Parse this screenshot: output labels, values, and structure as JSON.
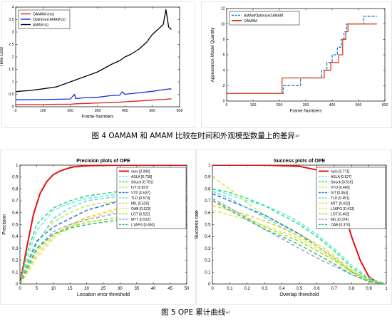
{
  "figures": {
    "fig4_caption": "图 4 OAMAM 和 AMAM 比较在时间和外观模型数量上的差异",
    "fig5_caption": "图 5 OPE 累计曲线",
    "caption_mark": "↵"
  },
  "chart_data": [
    {
      "type": "line",
      "title": "",
      "xlabel": "Frame Numbers",
      "ylabel": "Time Cost",
      "xlim": [
        0,
        600
      ],
      "ylim": [
        0,
        4
      ],
      "xticks": [
        0,
        100,
        200,
        300,
        400,
        500,
        600
      ],
      "yticks": [
        0,
        0.5,
        1,
        1.5,
        2,
        2.5,
        3,
        3.5,
        4
      ],
      "grid": false,
      "legend_position": "top-left",
      "series": [
        {
          "name": "OAMAM (ms)",
          "color": "#e02020",
          "x": [
            0,
            50,
            100,
            150,
            200,
            220,
            250,
            300,
            350,
            400,
            450,
            500,
            550,
            570
          ],
          "y": [
            0.08,
            0.09,
            0.09,
            0.1,
            0.1,
            0.12,
            0.13,
            0.15,
            0.17,
            0.2,
            0.23,
            0.27,
            0.3,
            0.32
          ]
        },
        {
          "name": "Optimized AMAM (s)",
          "color": "#1a2be0",
          "x": [
            0,
            100,
            200,
            215,
            220,
            230,
            250,
            300,
            350,
            380,
            390,
            400,
            450,
            500,
            550,
            570
          ],
          "y": [
            0.28,
            0.29,
            0.31,
            0.5,
            0.33,
            0.34,
            0.36,
            0.38,
            0.45,
            0.46,
            0.6,
            0.5,
            0.56,
            0.62,
            0.7,
            0.72
          ]
        },
        {
          "name": "AMAM (s)",
          "color": "#000000",
          "x": [
            0,
            10,
            50,
            100,
            150,
            200,
            250,
            300,
            350,
            380,
            400,
            420,
            450,
            480,
            500,
            520,
            540,
            550,
            560,
            570
          ],
          "y": [
            0.6,
            0.62,
            0.65,
            0.72,
            0.8,
            1.0,
            1.2,
            1.4,
            1.7,
            1.85,
            2.0,
            2.1,
            2.3,
            2.6,
            2.9,
            3.1,
            3.3,
            3.9,
            3.2,
            3.1
          ]
        }
      ]
    },
    {
      "type": "line",
      "title": "",
      "xlabel": "Frame Numbers",
      "ylabel": "Appearance Model Quantity",
      "xlim": [
        0,
        600
      ],
      "ylim": [
        0,
        12
      ],
      "xticks": [
        0,
        100,
        200,
        300,
        400,
        500,
        600
      ],
      "yticks": [
        0,
        2,
        4,
        6,
        8,
        10,
        12
      ],
      "grid": false,
      "legend_position": "top-left",
      "series": [
        {
          "name": "AMAM/Optimized AMAM",
          "color": "#1f77d4",
          "style": "dashed",
          "step": true,
          "x": [
            0,
            215,
            280,
            360,
            380,
            400,
            420,
            435,
            445,
            455,
            520,
            570
          ],
          "y": [
            1,
            2,
            3,
            4,
            5,
            6,
            7,
            8,
            9,
            10,
            11,
            11
          ]
        },
        {
          "name": "OAMAM",
          "color": "#e0401a",
          "style": "solid",
          "step": true,
          "x": [
            0,
            210,
            370,
            395,
            425,
            440,
            452,
            460,
            570
          ],
          "y": [
            1,
            3,
            4,
            5,
            6,
            8,
            9,
            10,
            10
          ]
        }
      ]
    },
    {
      "type": "line",
      "title": "Precision plots of OPE",
      "xlabel": "Location error threshold",
      "ylabel": "Precision",
      "xlim": [
        0,
        50
      ],
      "ylim": [
        0,
        1
      ],
      "xticks": [
        0,
        5,
        10,
        15,
        20,
        25,
        30,
        35,
        40,
        45,
        50
      ],
      "yticks": [
        0,
        0.1,
        0.2,
        0.3,
        0.4,
        0.5,
        0.6,
        0.7,
        0.8,
        0.9,
        1
      ],
      "grid": false,
      "legend_position": "top-right",
      "series": [
        {
          "name": "ours [0.906]",
          "color": "#e81010",
          "style": "solid",
          "x": [
            0,
            2,
            4,
            6,
            8,
            10,
            12,
            14,
            16,
            20,
            30,
            40,
            50
          ],
          "y": [
            0,
            0.3,
            0.58,
            0.76,
            0.86,
            0.92,
            0.95,
            0.97,
            0.985,
            0.995,
            1.0,
            1.0,
            1.0
          ]
        },
        {
          "name": "ASLA [0.738]",
          "color": "#70e8e8",
          "style": "dashed",
          "x": [
            0,
            2,
            5,
            10,
            15,
            20,
            30,
            40,
            50
          ],
          "y": [
            0,
            0.2,
            0.45,
            0.62,
            0.68,
            0.72,
            0.76,
            0.78,
            0.8
          ]
        },
        {
          "name": "Struck [0.701]",
          "color": "#2ee07a",
          "style": "dashed",
          "x": [
            0,
            2,
            5,
            10,
            15,
            20,
            30,
            40,
            50
          ],
          "y": [
            0,
            0.25,
            0.5,
            0.64,
            0.7,
            0.74,
            0.78,
            0.8,
            0.81
          ]
        },
        {
          "name": "IVT [0.657]",
          "color": "#d4e84a",
          "style": "dashed",
          "x": [
            0,
            2,
            5,
            10,
            15,
            20,
            30,
            40,
            50
          ],
          "y": [
            0,
            0.18,
            0.36,
            0.52,
            0.6,
            0.66,
            0.7,
            0.72,
            0.73
          ]
        },
        {
          "name": "VTD [0.637]",
          "color": "#2a7ad4",
          "style": "dashed",
          "x": [
            0,
            2,
            5,
            10,
            15,
            20,
            30,
            40,
            50
          ],
          "y": [
            0,
            0.15,
            0.36,
            0.48,
            0.55,
            0.62,
            0.7,
            0.75,
            0.78
          ]
        },
        {
          "name": "TLD [0.579]",
          "color": "#5ae0e8",
          "style": "dashed",
          "x": [
            0,
            2,
            5,
            10,
            15,
            20,
            30,
            40,
            50
          ],
          "y": [
            0,
            0.14,
            0.34,
            0.55,
            0.64,
            0.7,
            0.74,
            0.76,
            0.77
          ]
        },
        {
          "name": "MIL [0.529]",
          "color": "#e8d040",
          "style": "dashed",
          "x": [
            0,
            2,
            5,
            10,
            15,
            20,
            30,
            40,
            50
          ],
          "y": [
            0,
            0.1,
            0.25,
            0.4,
            0.5,
            0.56,
            0.64,
            0.68,
            0.7
          ]
        },
        {
          "name": "OAB [0.523]",
          "color": "#e8e860",
          "style": "dashed",
          "x": [
            0,
            2,
            5,
            10,
            15,
            20,
            30,
            40,
            50
          ],
          "y": [
            0,
            0.08,
            0.22,
            0.38,
            0.48,
            0.55,
            0.62,
            0.66,
            0.68
          ]
        },
        {
          "name": "LOT [0.522]",
          "color": "#a0e03a",
          "style": "dashed",
          "x": [
            0,
            2,
            5,
            10,
            15,
            20,
            30,
            40,
            50
          ],
          "y": [
            0,
            0.12,
            0.28,
            0.42,
            0.48,
            0.52,
            0.56,
            0.58,
            0.59
          ]
        },
        {
          "name": "MTT [0.522]",
          "color": "#a0a0e8",
          "style": "dashed",
          "x": [
            0,
            2,
            5,
            10,
            15,
            20,
            30,
            40,
            50
          ],
          "y": [
            0,
            0.12,
            0.3,
            0.44,
            0.5,
            0.54,
            0.6,
            0.64,
            0.66
          ]
        },
        {
          "name": "L1APG [0.460]",
          "color": "#3ac06a",
          "style": "dashed",
          "x": [
            0,
            2,
            5,
            10,
            15,
            20,
            30,
            40,
            50
          ],
          "y": [
            0,
            0.12,
            0.3,
            0.42,
            0.47,
            0.5,
            0.54,
            0.56,
            0.58
          ]
        }
      ]
    },
    {
      "type": "line",
      "title": "Success plots of OPE",
      "xlabel": "Overlap threshold",
      "ylabel": "Success rate",
      "xlim": [
        0,
        1
      ],
      "ylim": [
        0,
        1
      ],
      "xticks": [
        0,
        0.1,
        0.2,
        0.3,
        0.4,
        0.5,
        0.6,
        0.7,
        0.8,
        0.9,
        1
      ],
      "yticks": [
        0,
        0.1,
        0.2,
        0.3,
        0.4,
        0.5,
        0.6,
        0.7,
        0.8,
        0.9,
        1
      ],
      "grid": false,
      "legend_position": "top-right",
      "series": [
        {
          "name": "ours [0.771]",
          "color": "#e81010",
          "style": "solid",
          "x": [
            0,
            0.3,
            0.5,
            0.6,
            0.65,
            0.7,
            0.75,
            0.8,
            0.85,
            0.9,
            0.95,
            1.0
          ],
          "y": [
            1.0,
            1.0,
            0.99,
            0.96,
            0.92,
            0.82,
            0.65,
            0.4,
            0.2,
            0.06,
            0.01,
            0
          ]
        },
        {
          "name": "ASLA [0.527]",
          "color": "#70e8e8",
          "style": "dashed",
          "x": [
            0,
            0.1,
            0.2,
            0.3,
            0.4,
            0.5,
            0.6,
            0.7,
            0.8,
            0.9,
            1.0
          ],
          "y": [
            0.8,
            0.75,
            0.7,
            0.66,
            0.6,
            0.52,
            0.42,
            0.3,
            0.16,
            0.05,
            0
          ]
        },
        {
          "name": "Struck [0.516]",
          "color": "#2ee07a",
          "style": "dashed",
          "x": [
            0,
            0.1,
            0.2,
            0.3,
            0.4,
            0.5,
            0.6,
            0.7,
            0.8,
            0.9,
            1.0
          ],
          "y": [
            0.8,
            0.77,
            0.72,
            0.66,
            0.58,
            0.5,
            0.4,
            0.28,
            0.14,
            0.04,
            0
          ]
        },
        {
          "name": "VTD [0.460]",
          "color": "#d4e84a",
          "style": "dashed",
          "x": [
            0,
            0.1,
            0.2,
            0.3,
            0.4,
            0.5,
            0.6,
            0.7,
            0.8,
            0.9,
            1.0
          ],
          "y": [
            0.9,
            0.8,
            0.68,
            0.58,
            0.5,
            0.42,
            0.34,
            0.24,
            0.12,
            0.03,
            0
          ]
        },
        {
          "name": "IVT [0.453]",
          "color": "#2a7ad4",
          "style": "dashed",
          "x": [
            0,
            0.1,
            0.2,
            0.3,
            0.4,
            0.5,
            0.6,
            0.7,
            0.8,
            0.9,
            1.0
          ],
          "y": [
            0.76,
            0.7,
            0.64,
            0.58,
            0.5,
            0.42,
            0.32,
            0.22,
            0.1,
            0.03,
            0
          ]
        },
        {
          "name": "TLD [0.451]",
          "color": "#5ae0e8",
          "style": "dashed",
          "x": [
            0,
            0.1,
            0.2,
            0.3,
            0.4,
            0.5,
            0.6,
            0.7,
            0.8,
            0.9,
            1.0
          ],
          "y": [
            0.78,
            0.72,
            0.64,
            0.56,
            0.48,
            0.4,
            0.32,
            0.22,
            0.11,
            0.03,
            0
          ]
        },
        {
          "name": "MTT [0.432]",
          "color": "#e8d040",
          "style": "dashed",
          "x": [
            0,
            0.1,
            0.2,
            0.3,
            0.4,
            0.5,
            0.6,
            0.7,
            0.8,
            0.9,
            1.0
          ],
          "y": [
            0.66,
            0.62,
            0.58,
            0.53,
            0.47,
            0.4,
            0.32,
            0.22,
            0.11,
            0.03,
            0
          ]
        },
        {
          "name": "L1APG [0.413]",
          "color": "#e8e860",
          "style": "dashed",
          "x": [
            0,
            0.1,
            0.2,
            0.3,
            0.4,
            0.5,
            0.6,
            0.7,
            0.8,
            0.9,
            1.0
          ],
          "y": [
            0.62,
            0.58,
            0.54,
            0.49,
            0.44,
            0.38,
            0.3,
            0.21,
            0.11,
            0.03,
            0
          ]
        },
        {
          "name": "LOT [0.402]",
          "color": "#a0e03a",
          "style": "dashed",
          "x": [
            0,
            0.1,
            0.2,
            0.3,
            0.4,
            0.5,
            0.6,
            0.7,
            0.8,
            0.9,
            1.0
          ],
          "y": [
            0.7,
            0.64,
            0.56,
            0.48,
            0.42,
            0.36,
            0.28,
            0.2,
            0.1,
            0.03,
            0
          ]
        },
        {
          "name": "MIL [0.374]",
          "color": "#a0a0e8",
          "style": "dashed",
          "x": [
            0,
            0.1,
            0.2,
            0.3,
            0.4,
            0.5,
            0.6,
            0.7,
            0.8,
            0.9,
            1.0
          ],
          "y": [
            0.72,
            0.64,
            0.55,
            0.46,
            0.38,
            0.3,
            0.22,
            0.15,
            0.08,
            0.02,
            0
          ]
        },
        {
          "name": "OAB [0.370]",
          "color": "#3ac06a",
          "style": "dashed",
          "x": [
            0,
            0.1,
            0.2,
            0.3,
            0.4,
            0.5,
            0.6,
            0.7,
            0.8,
            0.9,
            1.0
          ],
          "y": [
            0.7,
            0.62,
            0.54,
            0.46,
            0.4,
            0.33,
            0.25,
            0.17,
            0.08,
            0.02,
            0
          ]
        }
      ]
    }
  ]
}
